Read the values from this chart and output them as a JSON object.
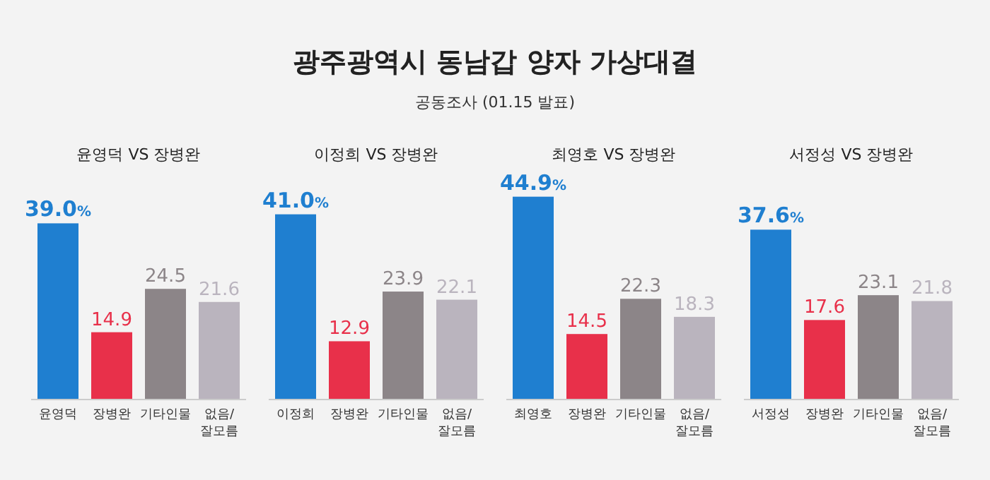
{
  "chart_data": [
    {
      "type": "other",
      "title": "광주광역시 동남갑 양자 가상대결",
      "subtitle": "공동조사 (01.15 발표)"
    },
    {
      "type": "bar",
      "title": "윤영덕 VS 장병완",
      "categories": [
        "윤영덕",
        "장병완",
        "기타인물",
        "없음/잘모름"
      ],
      "values": [
        39.0,
        14.9,
        24.5,
        21.6
      ],
      "colors": [
        "#1f7fd0",
        "#e8304a",
        "#8c8588",
        "#bab4be"
      ],
      "value_labels": [
        "39.0%",
        "14.9",
        "24.5",
        "21.6"
      ]
    },
    {
      "type": "bar",
      "title": "이정희 VS 장병완",
      "categories": [
        "이정희",
        "장병완",
        "기타인물",
        "없음/잘모름"
      ],
      "values": [
        41.0,
        12.9,
        23.9,
        22.1
      ],
      "colors": [
        "#1f7fd0",
        "#e8304a",
        "#8c8588",
        "#bab4be"
      ],
      "value_labels": [
        "41.0%",
        "12.9",
        "23.9",
        "22.1"
      ]
    },
    {
      "type": "bar",
      "title": "최영호 VS 장병완",
      "categories": [
        "최영호",
        "장병완",
        "기타인물",
        "없음/잘모름"
      ],
      "values": [
        44.9,
        14.5,
        22.3,
        18.3
      ],
      "colors": [
        "#1f7fd0",
        "#e8304a",
        "#8c8588",
        "#bab4be"
      ],
      "value_labels": [
        "44.9%",
        "14.5",
        "22.3",
        "18.3"
      ]
    },
    {
      "type": "bar",
      "title": "서정성 VS 장병완",
      "categories": [
        "서정성",
        "장병완",
        "기타인물",
        "없음/잘모름"
      ],
      "values": [
        37.6,
        17.6,
        23.1,
        21.8
      ],
      "colors": [
        "#1f7fd0",
        "#e8304a",
        "#8c8588",
        "#bab4be"
      ],
      "value_labels": [
        "37.6%",
        "17.6",
        "23.1",
        "21.8"
      ]
    }
  ]
}
